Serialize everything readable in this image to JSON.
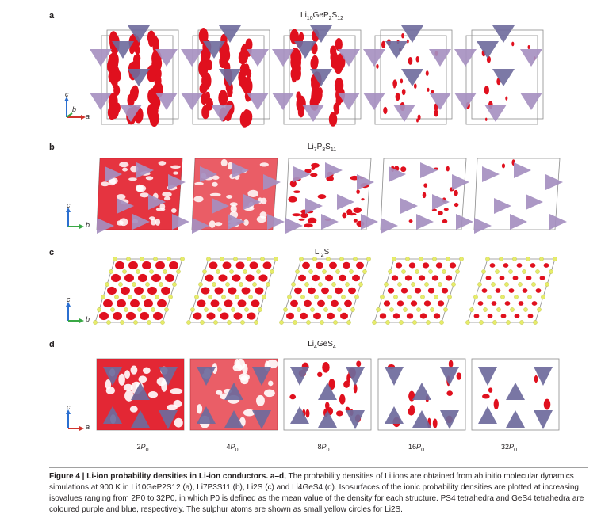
{
  "panels": [
    {
      "letter": "a",
      "title": "Li",
      "title_sub1": "10",
      "title_mid": "GeP",
      "title_sub2": "2",
      "title_end": "S",
      "title_sub3": "12",
      "axes": [
        "c",
        "b",
        "a"
      ]
    },
    {
      "letter": "b",
      "title": "Li",
      "title_sub1": "7",
      "title_mid": "P",
      "title_sub2": "3",
      "title_end": "S",
      "title_sub3": "11",
      "axes": [
        "c",
        "b"
      ]
    },
    {
      "letter": "c",
      "title": "Li",
      "title_sub1": "2",
      "title_mid": "S",
      "title_sub2": "",
      "title_end": "",
      "title_sub3": "",
      "axes": [
        "c",
        "b"
      ]
    },
    {
      "letter": "d",
      "title": "Li",
      "title_sub1": "4",
      "title_mid": "GeS",
      "title_sub2": "4",
      "title_end": "",
      "title_sub3": "",
      "axes": [
        "c",
        "a"
      ]
    }
  ],
  "isovalues": [
    "2P0",
    "4P0",
    "8P0",
    "16P0",
    "32P0"
  ],
  "isovalue_display": [
    {
      "num": "2",
      "P": "P",
      "sub": "0"
    },
    {
      "num": "4",
      "P": "P",
      "sub": "0"
    },
    {
      "num": "8",
      "P": "P",
      "sub": "0"
    },
    {
      "num": "16",
      "P": "P",
      "sub": "0"
    },
    {
      "num": "32",
      "P": "P",
      "sub": "0"
    }
  ],
  "caption": {
    "label": "Figure 4 | Li-ion probability densities in Li-ion conductors. a–d,",
    "text": "The probability densities of Li ions are obtained from ab initio molecular dynamics simulations at 900 K in Li10GeP2S12 (a), Li7P3S11 (b), Li2S (c) and Li4GeS4 (d). Isosurfaces of the ionic probability densities are plotted at increasing isovalues ranging from 2P0 to 32P0, in which P0 is defined as the mean value of the density for each structure. PS4 tetrahedra and GeS4 tetrahedra are coloured purple and blue, respectively. The sulphur atoms are shown as small yellow circles for Li2S."
  },
  "colors": {
    "density": "#e0101e",
    "ps4": "#a58fc0",
    "ges4": "#6e6a9c",
    "sulphur": "#e6ec6a",
    "cell_line": "#8c8c8c",
    "axis_c": "#2b6fd0",
    "axis_b": "#39a845",
    "axis_a": "#d0332b"
  }
}
